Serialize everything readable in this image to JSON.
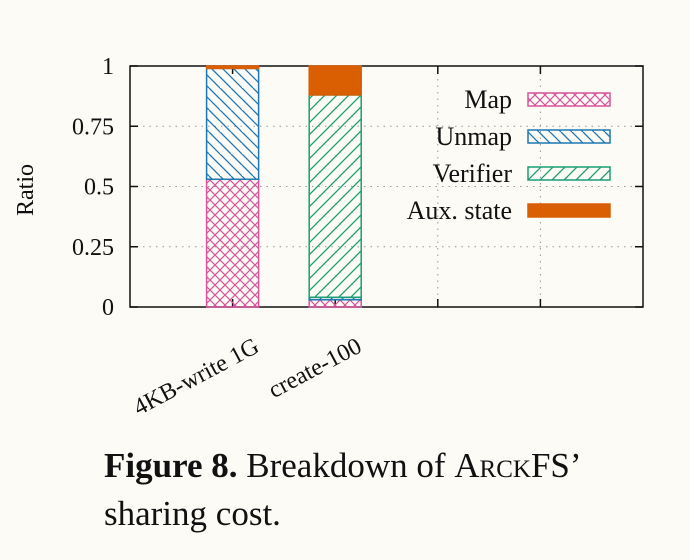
{
  "caption": {
    "label": "Figure 8.",
    "text_before": "Breakdown of",
    "system": "ArckFS",
    "text_after": "’ sharing cost."
  },
  "colors": {
    "Map": "#d6559b",
    "Unmap": "#1f78b4",
    "Verifier": "#1a9e73",
    "Aux. state": "#d95f02"
  },
  "chart_data": {
    "type": "bar",
    "stacked": true,
    "ylabel": "Ratio",
    "xlabel": "",
    "ylim": [
      0,
      1
    ],
    "yticks": [
      "0",
      "0.25",
      "0.5",
      "0.75",
      "1"
    ],
    "ytick_values": [
      0,
      0.25,
      0.5,
      0.75,
      1
    ],
    "categories": [
      "4KB-write 1G",
      "create-100"
    ],
    "series": [
      {
        "name": "Map",
        "values": [
          0.53,
          0.03
        ],
        "pattern": "crosshatch"
      },
      {
        "name": "Unmap",
        "values": [
          0.46,
          0.01
        ],
        "pattern": "backslash"
      },
      {
        "name": "Verifier",
        "values": [
          0.0,
          0.84
        ],
        "pattern": "slash"
      },
      {
        "name": "Aux. state",
        "values": [
          0.01,
          0.12
        ],
        "pattern": "solid"
      }
    ],
    "legend_position": "top-right",
    "grid": true
  }
}
